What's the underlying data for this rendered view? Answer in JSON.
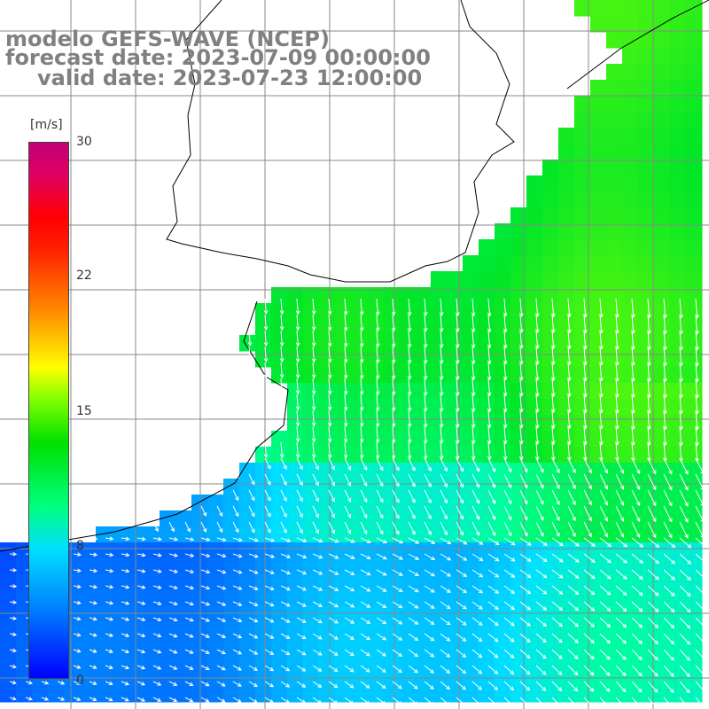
{
  "title": {
    "line1": "modelo GEFS-WAVE (NCEP)",
    "line2": "forecast date: 2023-07-09 00:00:00",
    "line3": "valid date: 2023-07-23 12:00:00"
  },
  "colorbar": {
    "units": "[m/s]",
    "ticks": [
      {
        "label": "30",
        "value": 30
      },
      {
        "label": "22",
        "value": 22
      },
      {
        "label": "15",
        "value": 15
      },
      {
        "label": "8",
        "value": 8
      },
      {
        "label": "0",
        "value": 0
      }
    ],
    "range": [
      0,
      30
    ]
  },
  "map": {
    "variable": "wind speed and direction",
    "land_color": "#ffffff",
    "coast_color": "#000000",
    "grid_color": "#888888",
    "arrow_color": "#ffffff"
  }
}
